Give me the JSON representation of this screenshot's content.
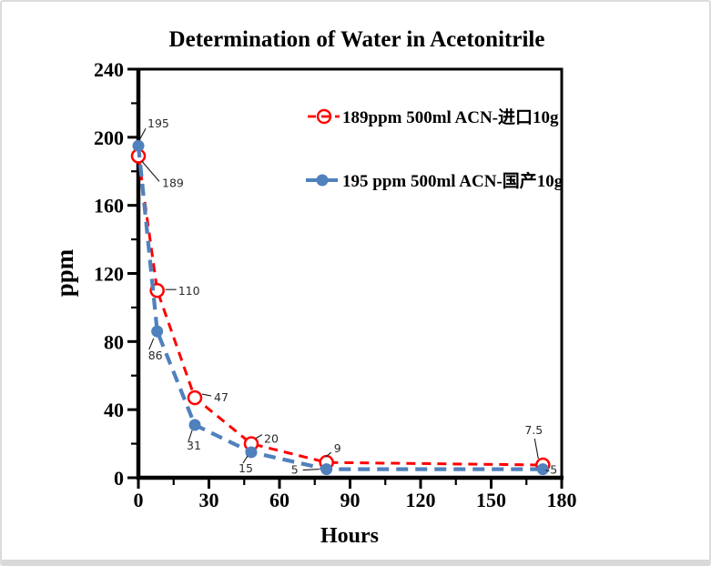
{
  "window": {
    "background": "#ffffff",
    "border_color": "#dcdcdc"
  },
  "chart_data": {
    "type": "line",
    "title": "Determination of Water in Acetonitrile",
    "xlabel": "Hours",
    "ylabel": "ppm",
    "xlim": [
      0,
      180
    ],
    "ylim": [
      0,
      240
    ],
    "xticks": [
      0,
      30,
      60,
      90,
      120,
      150,
      180
    ],
    "yticks": [
      0,
      40,
      80,
      120,
      160,
      200,
      240
    ],
    "x_minor_step": 15,
    "y_minor_step": 20,
    "grid": false,
    "legend_position": "inside-top-right",
    "frame_color": "#000000",
    "series": [
      {
        "name": "189ppm  500ml ACN-进口10g",
        "color": "#ff0000",
        "line_style": "dashed",
        "marker": "open-circle",
        "x": [
          0,
          8,
          24,
          48,
          80,
          172
        ],
        "y": [
          189,
          110,
          47,
          20,
          9,
          7.5
        ],
        "point_labels": [
          "189",
          "110",
          "47",
          "20",
          "9",
          "7.5"
        ]
      },
      {
        "name": "195 ppm 500ml ACN-国产10g",
        "color": "#4f81bd",
        "line_style": "dashed",
        "marker": "filled-circle",
        "x": [
          0,
          8,
          24,
          48,
          80,
          172
        ],
        "y": [
          195,
          86,
          31,
          15,
          5,
          5
        ],
        "point_labels": [
          "195",
          "86",
          "31",
          "15",
          "5",
          "5"
        ]
      }
    ]
  }
}
